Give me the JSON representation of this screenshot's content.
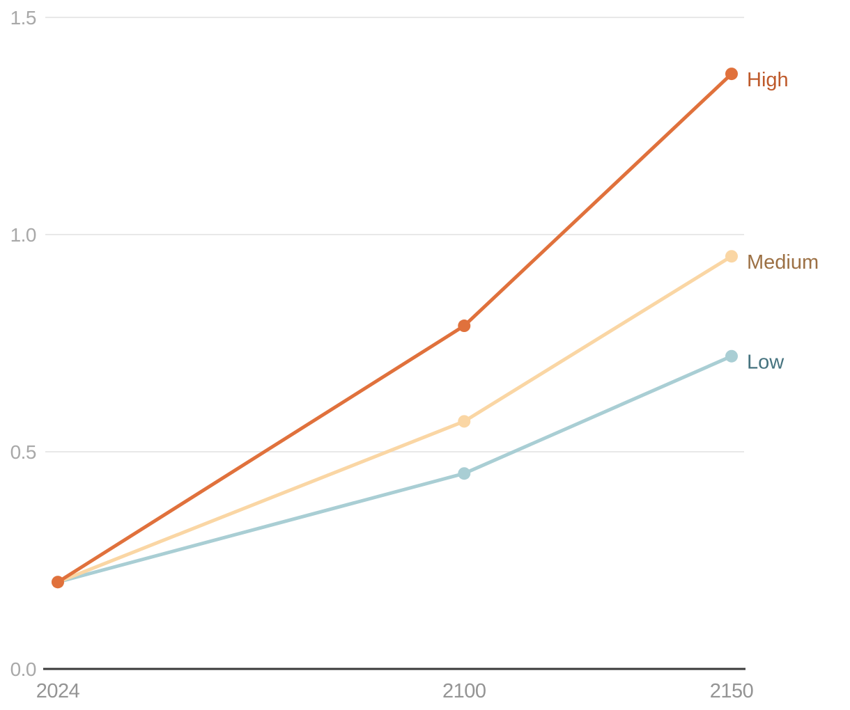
{
  "chart_data": {
    "type": "line",
    "title": "",
    "xlabel": "",
    "ylabel": "",
    "x": [
      2024,
      2100,
      2150
    ],
    "x_tick_labels": [
      "2024",
      "2100",
      "2150"
    ],
    "y_ticks": [
      0,
      0.5,
      1,
      1.5
    ],
    "y_tick_labels": [
      "0.0",
      "0.5",
      "1.0",
      "1.5"
    ],
    "xlim": [
      2024,
      2150
    ],
    "ylim": [
      0,
      1.5
    ],
    "grid": "horizontal-only",
    "legend_position": "direct-labels-at-line-ends",
    "series": [
      {
        "name": "Low",
        "values": [
          0.2,
          0.45,
          0.72
        ],
        "line_color": "#A9CED4",
        "label_color": "#46737F"
      },
      {
        "name": "Medium",
        "values": [
          0.2,
          0.57,
          0.95
        ],
        "line_color": "#FAD6A4",
        "label_color": "#9C7044"
      },
      {
        "name": "High",
        "values": [
          0.2,
          0.79,
          1.37
        ],
        "line_color": "#E0713C",
        "label_color": "#BE5A2B"
      }
    ]
  },
  "colors": {
    "background": "#ffffff",
    "gridline": "#E8E8E8",
    "axis_line": "#3A3A3A",
    "y_tick_label": "#A8A8A8",
    "x_tick_label": "#949494"
  }
}
